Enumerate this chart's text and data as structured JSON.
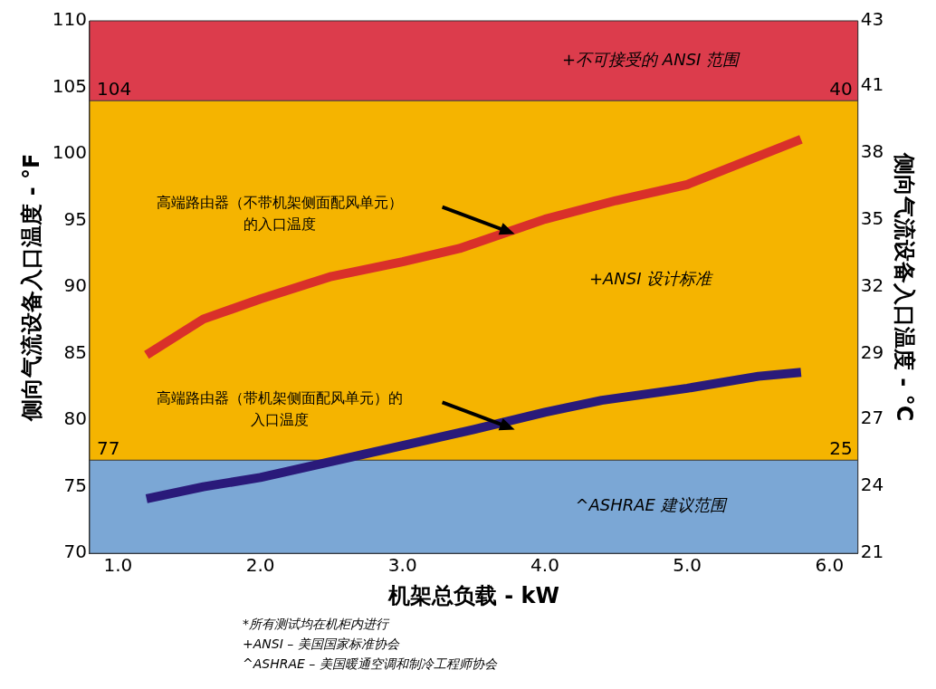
{
  "chart_data": {
    "type": "line",
    "xlabel": "机架总负载 - kW",
    "ylabel": "侧向气流设备入口温度 - °F",
    "y2label": "侧向气流设备入口温度 - °C",
    "xlim": [
      0.8,
      6.2
    ],
    "xticks": [
      {
        "value": 1,
        "label": "1.0"
      },
      {
        "value": 2,
        "label": "2.0"
      },
      {
        "value": 3,
        "label": "3.0"
      },
      {
        "value": 4,
        "label": "4.0"
      },
      {
        "value": 5,
        "label": "5.0"
      },
      {
        "value": 6,
        "label": "6.0"
      }
    ],
    "ylim": [
      70,
      110
    ],
    "yticks": [
      70,
      75,
      80,
      85,
      90,
      95,
      100,
      105,
      110
    ],
    "y2lim": [
      21.1,
      43.3
    ],
    "y2ticks": [
      {
        "value": 21.1,
        "label": "21"
      },
      {
        "value": 23.9,
        "label": "24"
      },
      {
        "value": 26.7,
        "label": "27"
      },
      {
        "value": 29.4,
        "label": "29"
      },
      {
        "value": 32.2,
        "label": "32"
      },
      {
        "value": 35,
        "label": "35"
      },
      {
        "value": 37.8,
        "label": "38"
      },
      {
        "value": 40.6,
        "label": "41"
      },
      {
        "value": 43.3,
        "label": "43"
      }
    ],
    "series": [
      {
        "color": "#d9302a",
        "x": [
          1.2,
          1.6,
          2.0,
          2.5,
          3.0,
          3.4,
          4.0,
          4.5,
          5.0,
          5.8
        ],
        "values": [
          84.9,
          87.6,
          89.1,
          90.8,
          91.9,
          92.9,
          95.1,
          96.5,
          97.7,
          101.1
        ]
      },
      {
        "color": "#2a1a7a",
        "x": [
          1.2,
          1.6,
          2.0,
          3.0,
          3.5,
          4.0,
          4.4,
          5.0,
          5.5,
          5.8
        ],
        "values": [
          74.1,
          75.0,
          75.7,
          78.1,
          79.3,
          80.6,
          81.5,
          82.4,
          83.3,
          83.6
        ]
      }
    ],
    "bands": [
      {
        "axis": "y",
        "from": 104,
        "to": 110,
        "label": "+不可接受的 ANSI 范围",
        "color": "#dc3c4c"
      },
      {
        "axis": "y",
        "from": 77,
        "to": 104,
        "label": "+ANSI 设计标准",
        "color": "#f5b400"
      },
      {
        "axis": "y",
        "from": 70,
        "to": 77,
        "label": "^ASHRAE 建议范围",
        "color": "#7ba7d5"
      }
    ],
    "ref_lines": [
      {
        "axis": "y",
        "value": 104,
        "label": "104"
      },
      {
        "axis": "y",
        "value": 77,
        "label": "77"
      }
    ],
    "annotations": [
      "高端路由器（不带机架侧面配风单元）的入口温度",
      "高端路由器（带机架侧面配风单元）的入口温度",
      {
        "text": "40",
        "x": 6.2,
        "y": 104
      },
      {
        "text": "25",
        "x": 6.2,
        "y": 77
      },
      "*所有测试均在机柜内进行",
      "+ANSI – 美国国家标准协会",
      "^ASHRAE – 美国暖通空调和制冷工程师协会"
    ],
    "grid": false,
    "legend": false,
    "marker": "none",
    "line_style": "solid"
  }
}
